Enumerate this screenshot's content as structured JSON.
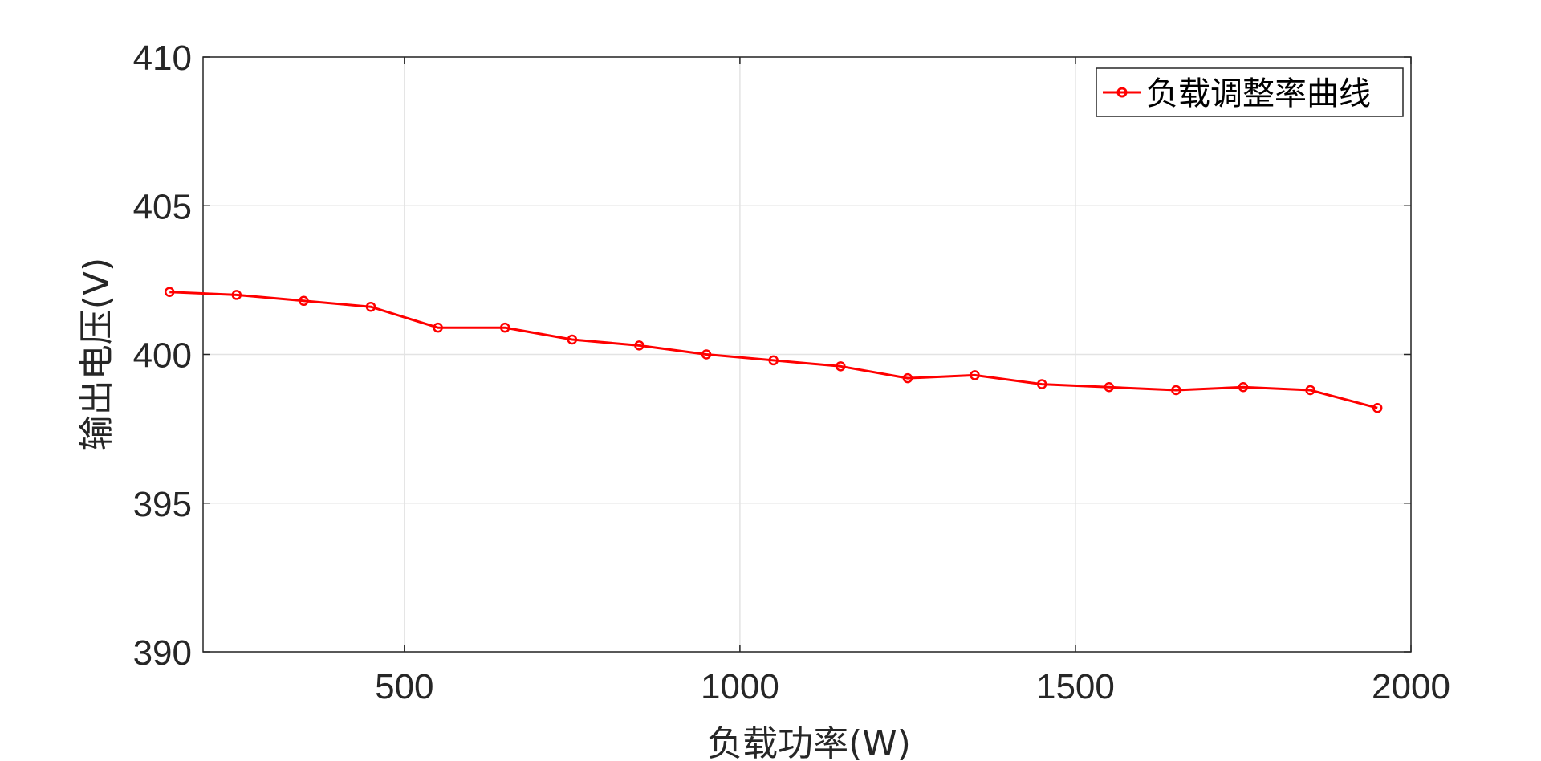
{
  "chart_data": {
    "type": "line",
    "xlabel": "负载功率(W)",
    "ylabel": "输出电压(V)",
    "xlim": [
      200,
      2000
    ],
    "ylim": [
      390,
      410
    ],
    "xticks": [
      500,
      1000,
      1500,
      2000
    ],
    "xtick_labels": [
      "500",
      "1000",
      "1500",
      "2000"
    ],
    "yticks": [
      390,
      395,
      400,
      405,
      410
    ],
    "ytick_labels": [
      "390",
      "395",
      "400",
      "405",
      "410"
    ],
    "grid": true,
    "legend_position": "top-right",
    "series": [
      {
        "name": "负载调整率曲线",
        "color": "#ff0000",
        "marker": "circle",
        "x": [
          150,
          250,
          350,
          450,
          550,
          650,
          750,
          850,
          950,
          1050,
          1150,
          1250,
          1350,
          1450,
          1550,
          1650,
          1750,
          1850,
          1950
        ],
        "y": [
          402.1,
          402.0,
          401.8,
          401.6,
          400.9,
          400.9,
          400.5,
          400.3,
          400.0,
          399.8,
          399.6,
          399.2,
          399.3,
          399.0,
          398.9,
          398.8,
          398.9,
          398.8,
          398.2
        ]
      }
    ]
  }
}
